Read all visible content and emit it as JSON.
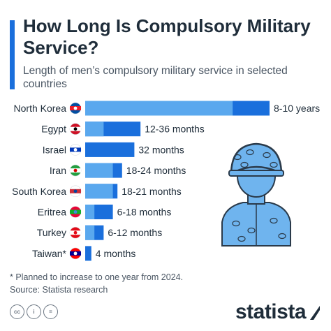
{
  "header": {
    "title": "How Long Is Compulsory Military Service?",
    "subtitle": "Length of men’s compulsory military service in selected countries"
  },
  "chart_data": {
    "type": "bar",
    "orientation": "horizontal",
    "value_unit": "months",
    "categories": [
      "North Korea",
      "Egypt",
      "Israel",
      "Iran",
      "South Korea",
      "Eritrea",
      "Turkey",
      "Taiwan*"
    ],
    "series": [
      {
        "role": "min",
        "values": [
          96,
          12,
          32,
          18,
          18,
          6,
          6,
          4
        ]
      },
      {
        "role": "max",
        "values": [
          120,
          36,
          32,
          24,
          21,
          18,
          12,
          4
        ]
      }
    ],
    "data_labels": [
      "8-10 years",
      "12-36 months",
      "32 months",
      "18-24 months",
      "18-21 months",
      "6-18 months",
      "6-12 months",
      "4 months"
    ],
    "colors": {
      "min": "#5aa8ee",
      "max": "#1a6fdc"
    },
    "xlim": [
      0,
      120
    ],
    "grid": false,
    "legend": "none"
  },
  "flags": [
    {
      "country": "North Korea",
      "colors": [
        "#024fa2",
        "#ed1c27",
        "#ffffff"
      ]
    },
    {
      "country": "Egypt",
      "colors": [
        "#ce1126",
        "#ffffff",
        "#000000"
      ]
    },
    {
      "country": "Israel",
      "colors": [
        "#ffffff",
        "#0038b8",
        "#ffffff"
      ]
    },
    {
      "country": "Iran",
      "colors": [
        "#239f40",
        "#ffffff",
        "#da0000"
      ]
    },
    {
      "country": "South Korea",
      "colors": [
        "#ffffff",
        "#cd2e3a",
        "#0047a0"
      ]
    },
    {
      "country": "Eritrea",
      "colors": [
        "#ea0437",
        "#12ad2b",
        "#4189dd"
      ]
    },
    {
      "country": "Turkey",
      "colors": [
        "#e30a17",
        "#ffffff",
        "#e30a17"
      ]
    },
    {
      "country": "Taiwan*",
      "colors": [
        "#fe0000",
        "#000095",
        "#ffffff"
      ]
    }
  ],
  "illustration": {
    "icon": "soldier-icon",
    "color": "#6fb4ee"
  },
  "footer": {
    "note": "* Planned to increase to one year from 2024.",
    "source": "Source: Statista research",
    "license_icons": [
      "cc",
      "i",
      "="
    ],
    "brand": "statista"
  }
}
